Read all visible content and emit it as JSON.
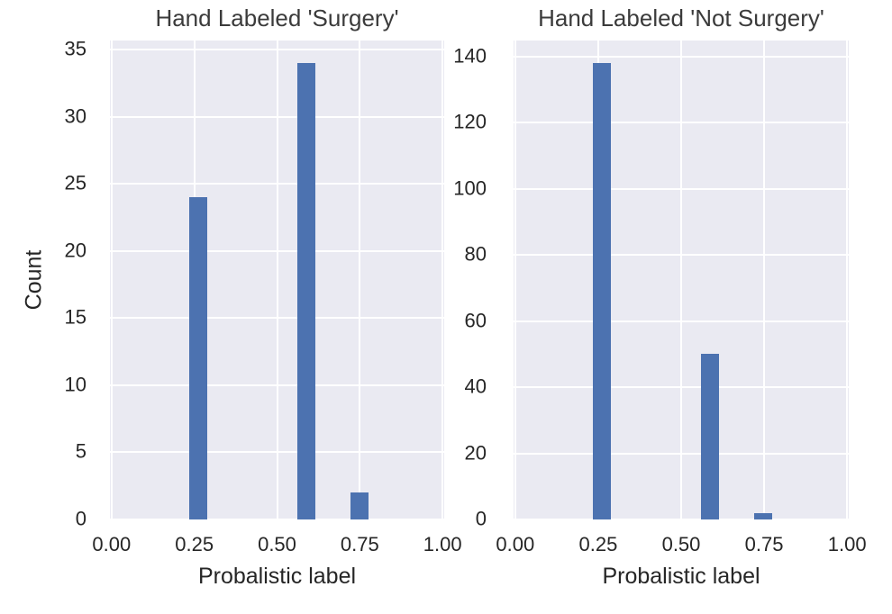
{
  "figure": {
    "background": "#ffffff",
    "plot_background": "#eaeaf2",
    "grid_color": "#ffffff",
    "bar_color": "#4c72b0",
    "text_color": "#262626"
  },
  "chart_data": [
    {
      "type": "bar",
      "title": "Hand Labeled 'Surgery'",
      "xlabel": "Probalistic label",
      "ylabel": "Count",
      "bars": [
        {
          "x": 0.262,
          "count": 24
        },
        {
          "x": 0.588,
          "count": 34
        },
        {
          "x": 0.748,
          "count": 2
        }
      ],
      "bar_width": 0.054,
      "xlim": [
        -0.005,
        1.005
      ],
      "ylim": [
        0,
        35.7
      ],
      "xticks": [
        0,
        0.25,
        0.5,
        0.75,
        1.0
      ],
      "xtick_labels": [
        "0.00",
        "0.25",
        "0.50",
        "0.75",
        "1.00"
      ],
      "yticks": [
        0,
        5,
        10,
        15,
        20,
        25,
        30,
        35
      ],
      "ytick_labels": [
        "0",
        "5",
        "10",
        "15",
        "20",
        "25",
        "30",
        "35"
      ],
      "grid": true,
      "legend_position": "none"
    },
    {
      "type": "bar",
      "title": "Hand Labeled 'Not Surgery'",
      "xlabel": "Probalistic label",
      "ylabel": "",
      "bars": [
        {
          "x": 0.26,
          "count": 138
        },
        {
          "x": 0.586,
          "count": 50
        },
        {
          "x": 0.747,
          "count": 2
        }
      ],
      "bar_width": 0.054,
      "xlim": [
        -0.005,
        1.005
      ],
      "ylim": [
        0,
        144.9
      ],
      "xticks": [
        0,
        0.25,
        0.5,
        0.75,
        1.0
      ],
      "xtick_labels": [
        "0.00",
        "0.25",
        "0.50",
        "0.75",
        "1.00"
      ],
      "yticks": [
        0,
        20,
        40,
        60,
        80,
        100,
        120,
        140
      ],
      "ytick_labels": [
        "0",
        "20",
        "40",
        "60",
        "80",
        "100",
        "120",
        "140"
      ],
      "grid": true,
      "legend_position": "none"
    }
  ]
}
